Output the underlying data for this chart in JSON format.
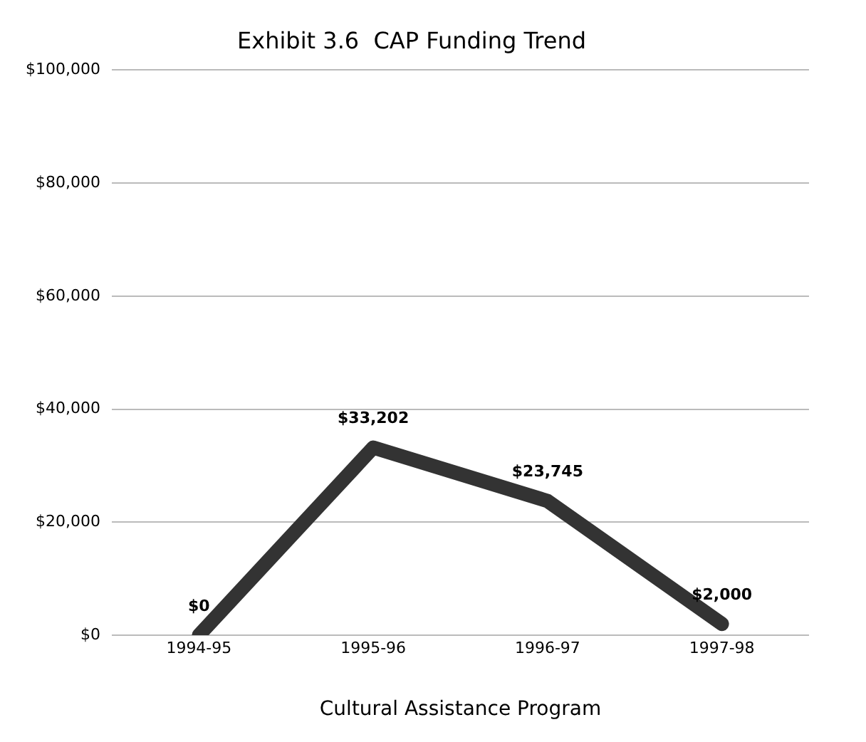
{
  "chart_data": {
    "type": "line",
    "title": "Exhibit 3.6  CAP Funding Trend",
    "xlabel": "Cultural Assistance Program",
    "categories": [
      "1994-95",
      "1995-96",
      "1996-97",
      "1997-98"
    ],
    "series": [
      {
        "color": "#333333",
        "values": [
          0,
          33202,
          23745,
          2000
        ],
        "value_labels": [
          "$0",
          "$33,202",
          "$23,745",
          "$2,000"
        ]
      }
    ],
    "ylim": [
      0,
      100000
    ],
    "yticks": [
      {
        "value": 0,
        "label": "$0"
      },
      {
        "value": 20000,
        "label": "$20,000"
      },
      {
        "value": 40000,
        "label": "$40,000"
      },
      {
        "value": 60000,
        "label": "$60,000"
      },
      {
        "value": 80000,
        "label": "$80,000"
      },
      {
        "value": 100000,
        "label": "$100,000"
      }
    ],
    "grid": "y",
    "legend": false,
    "marker": "none",
    "line_style": "solid"
  }
}
